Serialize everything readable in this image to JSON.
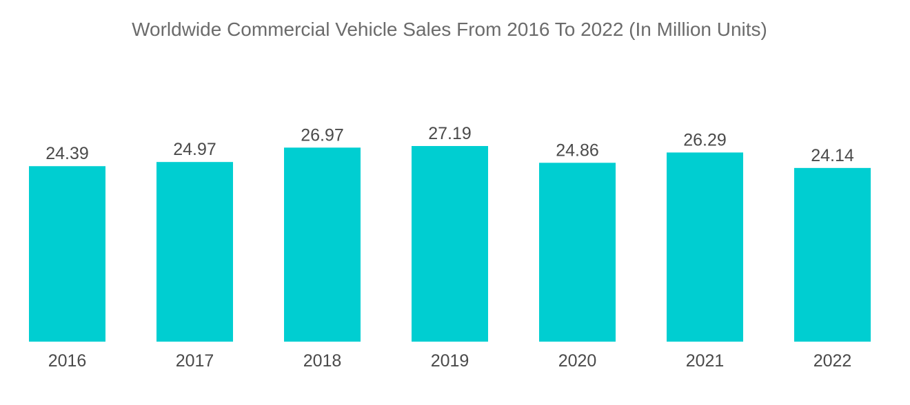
{
  "chart_data": {
    "type": "bar",
    "title": "Worldwide Commercial Vehicle Sales From 2016 To 2022 (In Million Units)",
    "xlabel": "",
    "ylabel": "",
    "categories": [
      "2016",
      "2017",
      "2018",
      "2019",
      "2020",
      "2021",
      "2022"
    ],
    "values": [
      24.39,
      24.97,
      26.97,
      27.19,
      24.86,
      26.29,
      24.14
    ],
    "value_labels": [
      "24.39",
      "24.97",
      "26.97",
      "27.19",
      "24.86",
      "26.29",
      "24.14"
    ],
    "ylim": [
      0,
      27.19
    ],
    "grid": false,
    "legend": "none",
    "bar_color": "#00CED1"
  }
}
